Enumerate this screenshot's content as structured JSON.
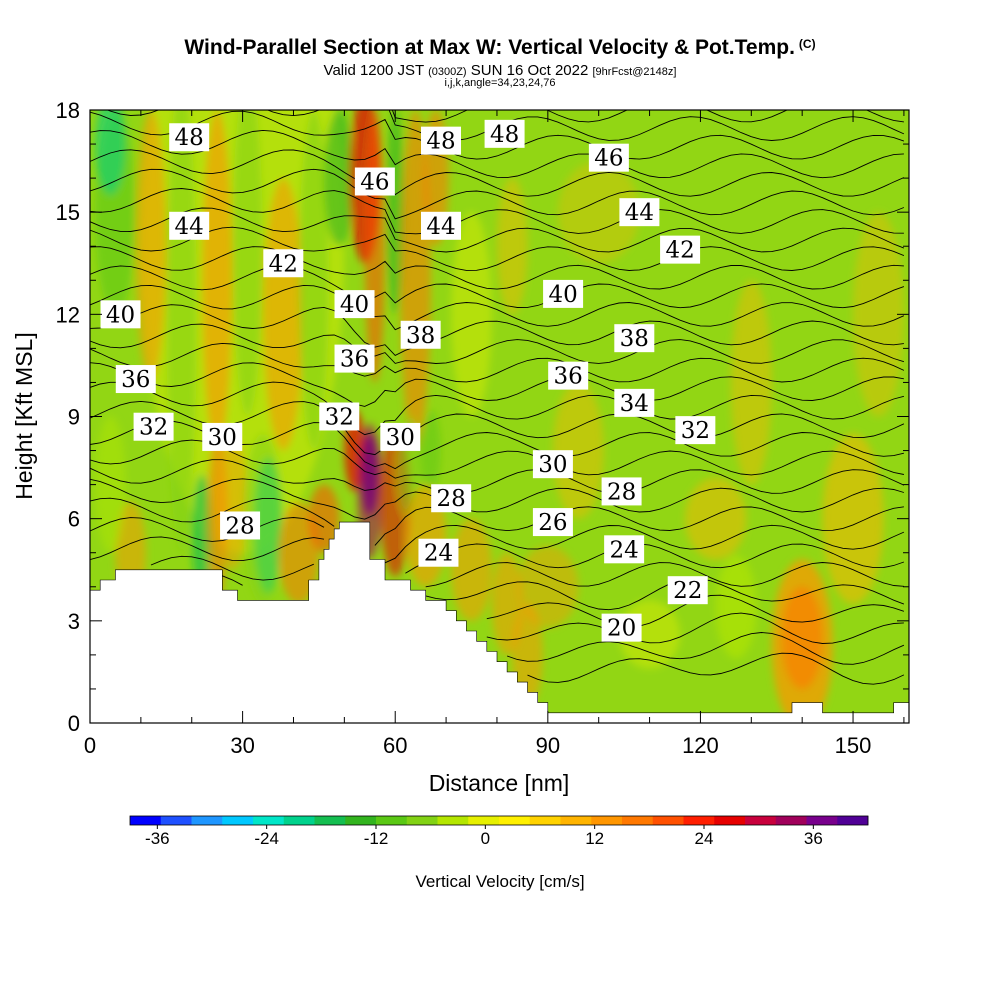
{
  "title": "Wind-Parallel Section at Max W: Vertical Velocity & Pot.Temp.",
  "title_suffix": "(C)",
  "subtitle_main_a": "Valid 1200 JST ",
  "subtitle_small_a": "(0300Z)",
  "subtitle_main_b": " SUN 16 Oct 2022 ",
  "subtitle_small_b": "[9hrFcst@2148z]",
  "subtitle2": "i,j,k,angle=34,23,24,76",
  "chart_data": {
    "type": "heatmap",
    "xlabel": "Distance [nm]",
    "ylabel": "Height [Kft MSL]",
    "xlim": [
      0,
      161
    ],
    "ylim": [
      0,
      18
    ],
    "x_ticks": [
      0,
      30,
      60,
      90,
      120,
      150
    ],
    "y_ticks": [
      0,
      3,
      6,
      9,
      12,
      15,
      18
    ],
    "colorbar": {
      "label": "Vertical Velocity [cm/s]",
      "min": -39,
      "max": 42,
      "step": 3,
      "tick_values": [
        -36,
        -24,
        -12,
        0,
        12,
        24,
        36
      ],
      "tick_labels": [
        "-36",
        "-24",
        "-12",
        "0",
        "12",
        "24",
        "36"
      ],
      "colors": [
        "#0000ff",
        "#1e50ff",
        "#1e96ff",
        "#00c8ff",
        "#00e6c8",
        "#00d28c",
        "#14be50",
        "#32b41e",
        "#5ac814",
        "#82d214",
        "#b4e600",
        "#e6f000",
        "#fff000",
        "#ffd200",
        "#ffb400",
        "#ff9600",
        "#ff7800",
        "#ff5000",
        "#ff1e00",
        "#e60000",
        "#c8003c",
        "#a0005a",
        "#78008c",
        "#500096"
      ]
    },
    "contour_labels": {
      "name": "Pot.Temp. (C)",
      "labels": [
        {
          "x": 19.5,
          "y": 17.2,
          "text": "48"
        },
        {
          "x": 69,
          "y": 17.1,
          "text": "48"
        },
        {
          "x": 81.5,
          "y": 17.3,
          "text": "48"
        },
        {
          "x": 56,
          "y": 15.9,
          "text": "46"
        },
        {
          "x": 102,
          "y": 16.6,
          "text": "46"
        },
        {
          "x": 19.5,
          "y": 14.6,
          "text": "44"
        },
        {
          "x": 69,
          "y": 14.6,
          "text": "44"
        },
        {
          "x": 108,
          "y": 15.0,
          "text": "44"
        },
        {
          "x": 38,
          "y": 13.5,
          "text": "42"
        },
        {
          "x": 116,
          "y": 13.9,
          "text": "42"
        },
        {
          "x": 6,
          "y": 12.0,
          "text": "40"
        },
        {
          "x": 52,
          "y": 12.3,
          "text": "40"
        },
        {
          "x": 93,
          "y": 12.6,
          "text": "40"
        },
        {
          "x": 65,
          "y": 11.4,
          "text": "38"
        },
        {
          "x": 107,
          "y": 11.3,
          "text": "38"
        },
        {
          "x": 9,
          "y": 10.1,
          "text": "36"
        },
        {
          "x": 52,
          "y": 10.7,
          "text": "36"
        },
        {
          "x": 94,
          "y": 10.2,
          "text": "36"
        },
        {
          "x": 107,
          "y": 9.4,
          "text": "34"
        },
        {
          "x": 12.5,
          "y": 8.7,
          "text": "32"
        },
        {
          "x": 49,
          "y": 9.0,
          "text": "32"
        },
        {
          "x": 119,
          "y": 8.6,
          "text": "32"
        },
        {
          "x": 26,
          "y": 8.4,
          "text": "30"
        },
        {
          "x": 61,
          "y": 8.4,
          "text": "30"
        },
        {
          "x": 91,
          "y": 7.6,
          "text": "30"
        },
        {
          "x": 71,
          "y": 6.6,
          "text": "28"
        },
        {
          "x": 104.5,
          "y": 6.8,
          "text": "28"
        },
        {
          "x": 29.5,
          "y": 5.8,
          "text": "28"
        },
        {
          "x": 91,
          "y": 5.9,
          "text": "26"
        },
        {
          "x": 68.5,
          "y": 5.0,
          "text": "24"
        },
        {
          "x": 105,
          "y": 5.1,
          "text": "24"
        },
        {
          "x": 117.5,
          "y": 3.9,
          "text": "22"
        },
        {
          "x": 104.5,
          "y": 2.8,
          "text": "20"
        }
      ]
    }
  }
}
